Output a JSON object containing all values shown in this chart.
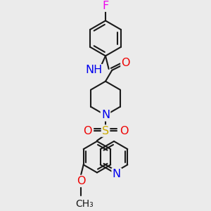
{
  "bg_color": "#ebebeb",
  "bond_color": "#1a1a1a",
  "bond_width": 1.5,
  "atom_colors": {
    "F": "#ee00ee",
    "N": "#0000ee",
    "O": "#ee0000",
    "S": "#ccaa00",
    "H": "#008888",
    "C": "#1a1a1a"
  },
  "fs": 11.5,
  "fs_small": 10.0
}
